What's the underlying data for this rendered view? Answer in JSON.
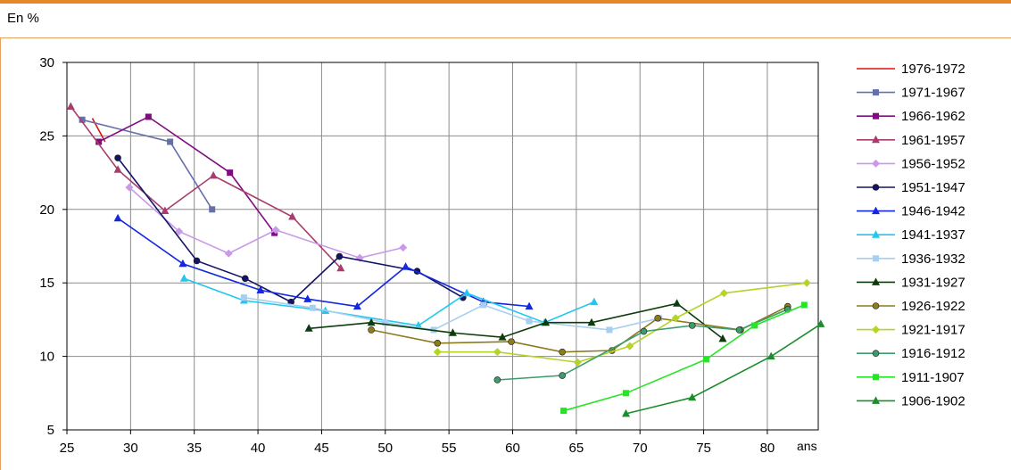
{
  "unit_label": "En %",
  "chart_data": {
    "type": "line",
    "xlabel": "ans",
    "ylabel": "",
    "xlim": [
      25,
      84
    ],
    "ylim": [
      5,
      30
    ],
    "x_ticks": [
      25,
      30,
      35,
      40,
      45,
      50,
      55,
      60,
      65,
      70,
      75,
      80
    ],
    "y_ticks": [
      5,
      10,
      15,
      20,
      25,
      30
    ],
    "grid": true,
    "legend_position": "right",
    "series": [
      {
        "name": "1976-1972",
        "color": "#e01010",
        "marker": "none",
        "x": [
          27,
          28
        ],
        "y": [
          26.2,
          24.6
        ]
      },
      {
        "name": "1971-1967",
        "color": "#6670a8",
        "marker": "square",
        "x": [
          26.2,
          33.1,
          36.4
        ],
        "y": [
          26.1,
          24.6,
          20.0
        ]
      },
      {
        "name": "1966-1962",
        "color": "#800c80",
        "marker": "square",
        "x": [
          27.5,
          31.4,
          37.8,
          41.3
        ],
        "y": [
          24.6,
          26.3,
          22.5,
          18.4
        ]
      },
      {
        "name": "1961-1957",
        "color": "#a83c6c",
        "marker": "triangle",
        "x": [
          25.3,
          29.0,
          32.7,
          36.5,
          42.7,
          46.5
        ],
        "y": [
          27.0,
          22.7,
          19.9,
          22.3,
          19.5,
          16.0
        ]
      },
      {
        "name": "1956-1952",
        "color": "#c89ae8",
        "marker": "diamond",
        "x": [
          29.9,
          33.8,
          37.7,
          41.4,
          48.0,
          51.4
        ],
        "y": [
          21.5,
          18.5,
          17.0,
          18.6,
          16.7,
          17.4
        ]
      },
      {
        "name": "1951-1947",
        "color": "#141464",
        "marker": "circle",
        "x": [
          29.0,
          35.2,
          39.0,
          42.6,
          46.4,
          52.5,
          56.1
        ],
        "y": [
          23.5,
          16.5,
          15.3,
          13.7,
          16.8,
          15.8,
          14.0
        ]
      },
      {
        "name": "1946-1942",
        "color": "#1428e0",
        "marker": "triangle",
        "x": [
          29.0,
          34.1,
          40.2,
          43.9,
          47.8,
          51.6,
          57.7,
          61.3
        ],
        "y": [
          19.4,
          16.3,
          14.5,
          13.9,
          13.4,
          16.1,
          13.7,
          13.4
        ]
      },
      {
        "name": "1941-1937",
        "color": "#20c8f0",
        "marker": "triangle",
        "x": [
          34.2,
          38.9,
          45.3,
          52.6,
          56.4,
          62.5,
          66.4
        ],
        "y": [
          15.3,
          13.8,
          13.1,
          12.1,
          14.3,
          12.3,
          13.7
        ]
      },
      {
        "name": "1936-1932",
        "color": "#a8cef0",
        "marker": "square",
        "x": [
          38.9,
          44.3,
          50.0,
          53.8,
          57.7,
          61.3,
          67.6,
          71.5
        ],
        "y": [
          14.0,
          13.3,
          12.3,
          11.8,
          13.5,
          12.4,
          11.8,
          12.6
        ]
      },
      {
        "name": "1931-1927",
        "color": "#0c3c0c",
        "marker": "triangle",
        "x": [
          44.0,
          48.9,
          55.3,
          59.2,
          62.6,
          66.2,
          72.9,
          76.5
        ],
        "y": [
          11.9,
          12.3,
          11.6,
          11.3,
          12.3,
          12.3,
          13.6,
          11.2
        ]
      },
      {
        "name": "1926-1922",
        "color": "#8c7c1c",
        "marker": "circle",
        "x": [
          48.9,
          54.1,
          59.9,
          63.9,
          67.8,
          71.4,
          77.9,
          81.6
        ],
        "y": [
          11.8,
          10.9,
          11.0,
          10.3,
          10.4,
          12.6,
          11.8,
          13.4
        ]
      },
      {
        "name": "1921-1917",
        "color": "#b4d428",
        "marker": "diamond",
        "x": [
          54.1,
          58.8,
          65.1,
          69.2,
          72.8,
          76.6,
          83.1
        ],
        "y": [
          10.3,
          10.3,
          9.6,
          10.7,
          12.6,
          14.3,
          15.0
        ]
      },
      {
        "name": "1916-1912",
        "color": "#3c9c6c",
        "marker": "circle",
        "x": [
          58.8,
          63.9,
          70.3,
          74.1,
          77.8,
          81.6
        ],
        "y": [
          8.4,
          8.7,
          11.7,
          12.1,
          11.8,
          13.2
        ]
      },
      {
        "name": "1911-1907",
        "color": "#28e428",
        "marker": "square",
        "x": [
          64.0,
          68.9,
          75.2,
          79.0,
          82.9
        ],
        "y": [
          6.3,
          7.5,
          9.8,
          12.1,
          13.5
        ]
      },
      {
        "name": "1906-1902",
        "color": "#1c8c2c",
        "marker": "triangle",
        "x": [
          68.9,
          74.1,
          80.3,
          84.2
        ],
        "y": [
          6.1,
          7.2,
          10.0,
          12.2
        ]
      }
    ]
  }
}
